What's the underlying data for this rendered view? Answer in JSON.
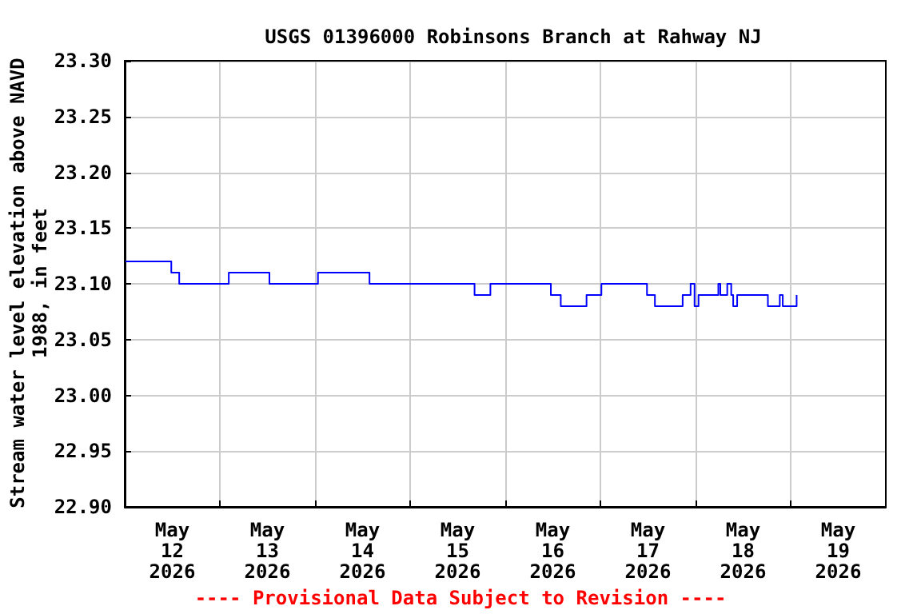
{
  "chart_data": {
    "type": "step",
    "title": "USGS 01396000 Robinsons Branch at Rahway NJ",
    "ylabel": "Stream water level elevation above NAVD\n1988, in feet",
    "annotations": [
      "---- Provisional Data Subject to Revision ----"
    ],
    "x": [
      "2026-05-12T00:00",
      "2026-05-12T11:45",
      "2026-05-12T13:45",
      "2026-05-13T02:15",
      "2026-05-13T12:30",
      "2026-05-14T00:45",
      "2026-05-14T13:45",
      "2026-05-15T16:15",
      "2026-05-15T20:15",
      "2026-05-16T11:30",
      "2026-05-16T14:00",
      "2026-05-16T20:30",
      "2026-05-17T00:15",
      "2026-05-17T11:45",
      "2026-05-17T13:45",
      "2026-05-17T20:45",
      "2026-05-17T22:45",
      "2026-05-17T23:45",
      "2026-05-18T00:45",
      "2026-05-18T05:45",
      "2026-05-18T06:15",
      "2026-05-18T08:00",
      "2026-05-18T09:00",
      "2026-05-18T09:30",
      "2026-05-18T10:30",
      "2026-05-18T18:15",
      "2026-05-18T21:15",
      "2026-05-18T22:00",
      "2026-05-19T01:30",
      "2026-05-19T01:45"
    ],
    "series": [
      {
        "color": "#0000ff",
        "values": [
          23.12,
          23.11,
          23.1,
          23.11,
          23.1,
          23.11,
          23.1,
          23.09,
          23.1,
          23.09,
          23.08,
          23.09,
          23.1,
          23.09,
          23.08,
          23.09,
          23.1,
          23.08,
          23.09,
          23.1,
          23.09,
          23.1,
          23.09,
          23.08,
          23.09,
          23.08,
          23.09,
          23.08,
          23.09,
          23.09
        ]
      }
    ],
    "xlim": [
      "2026-05-12T00:00",
      "2026-05-20T00:00"
    ],
    "xticks": [
      {
        "value": "2026-05-12T12:00",
        "label": "May\n12\n2026"
      },
      {
        "value": "2026-05-13T12:00",
        "label": "May\n13\n2026"
      },
      {
        "value": "2026-05-14T12:00",
        "label": "May\n14\n2026"
      },
      {
        "value": "2026-05-15T12:00",
        "label": "May\n15\n2026"
      },
      {
        "value": "2026-05-16T12:00",
        "label": "May\n16\n2026"
      },
      {
        "value": "2026-05-17T12:00",
        "label": "May\n17\n2026"
      },
      {
        "value": "2026-05-18T12:00",
        "label": "May\n18\n2026"
      },
      {
        "value": "2026-05-19T12:00",
        "label": "May\n19\n2026"
      },
      {
        "value": "2026-05-13T00:00",
        "label": null
      },
      {
        "value": "2026-05-14T00:00",
        "label": null
      },
      {
        "value": "2026-05-15T00:00",
        "label": null
      },
      {
        "value": "2026-05-16T00:00",
        "label": null
      },
      {
        "value": "2026-05-17T00:00",
        "label": null
      },
      {
        "value": "2026-05-18T00:00",
        "label": null
      },
      {
        "value": "2026-05-19T00:00",
        "label": null
      }
    ],
    "ylim": [
      22.9,
      23.3
    ],
    "yticks": [
      {
        "value": 22.9,
        "label": "22.90"
      },
      {
        "value": 22.95,
        "label": "22.95"
      },
      {
        "value": 23.0,
        "label": "23.00"
      },
      {
        "value": 23.05,
        "label": "23.05"
      },
      {
        "value": 23.1,
        "label": "23.10"
      },
      {
        "value": 23.15,
        "label": "23.15"
      },
      {
        "value": 23.2,
        "label": "23.20"
      },
      {
        "value": 23.25,
        "label": "23.25"
      },
      {
        "value": 23.3,
        "label": "23.30"
      }
    ],
    "grid": true,
    "marker": "none",
    "line_style": "solid"
  }
}
